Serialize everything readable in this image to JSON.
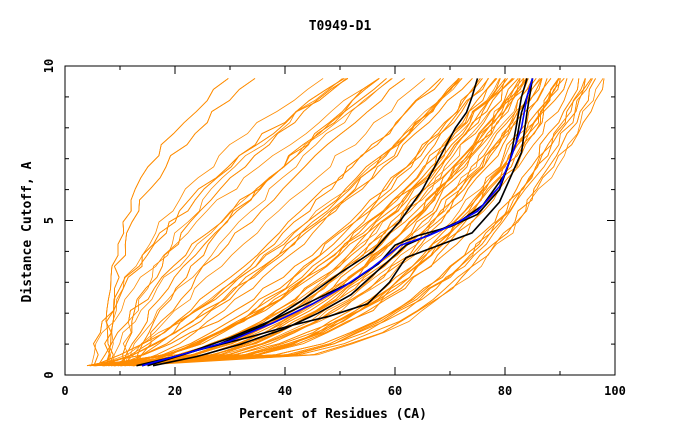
{
  "chart_data": {
    "type": "line",
    "title": "T0949-D1",
    "xlabel": "Percent of Residues (CA)",
    "ylabel": "Distance Cutoff, A",
    "xlim": [
      0,
      100
    ],
    "ylim": [
      0,
      10
    ],
    "x_ticks": [
      "0",
      "20",
      "40",
      "60",
      "80",
      "100"
    ],
    "y_ticks": [
      "0",
      "5",
      "10"
    ],
    "grid": false,
    "colors": {
      "models": "#ff8c00",
      "highlight": "#000000",
      "reference": "#0000ff"
    },
    "highlight_series": [
      {
        "x": [
          13,
          20,
          28,
          36,
          43,
          50,
          56,
          61,
          65,
          68,
          71,
          73,
          74,
          75
        ],
        "y": [
          0.3,
          0.6,
          1.0,
          1.6,
          2.4,
          3.3,
          4.0,
          5.0,
          6.0,
          7.0,
          8.0,
          8.5,
          9.0,
          9.6
        ]
      },
      {
        "x": [
          16,
          24,
          32,
          40,
          46,
          52,
          57,
          62,
          67,
          72,
          76,
          80,
          82,
          83,
          84,
          85
        ],
        "y": [
          0.3,
          0.6,
          1.0,
          1.5,
          2.0,
          2.6,
          3.4,
          4.2,
          4.6,
          5.0,
          5.5,
          6.5,
          7.5,
          8.5,
          9.0,
          9.6
        ]
      },
      {
        "x": [
          14,
          22,
          30,
          38,
          45,
          52,
          57,
          60,
          64,
          70,
          75,
          79,
          81,
          82,
          83,
          84
        ],
        "y": [
          0.3,
          0.7,
          1.2,
          1.8,
          2.4,
          3.0,
          3.6,
          4.2,
          4.5,
          4.8,
          5.2,
          6.0,
          7.0,
          8.0,
          9.0,
          9.6
        ]
      },
      {
        "x": [
          15,
          24,
          33,
          41,
          48,
          55,
          59,
          62,
          68,
          74,
          79,
          83,
          84,
          85
        ],
        "y": [
          0.3,
          0.8,
          1.2,
          1.6,
          1.9,
          2.3,
          3.0,
          3.8,
          4.2,
          4.6,
          5.6,
          7.2,
          8.5,
          9.6
        ]
      }
    ],
    "reference_series": [
      {
        "x": [
          14,
          22,
          30,
          38,
          45,
          51,
          56,
          61,
          66,
          71,
          75,
          79,
          81,
          83,
          84,
          85
        ],
        "y": [
          0.3,
          0.7,
          1.1,
          1.7,
          2.3,
          2.9,
          3.5,
          4.2,
          4.5,
          4.9,
          5.3,
          6.1,
          7.0,
          8.0,
          9.0,
          9.6
        ]
      }
    ]
  }
}
